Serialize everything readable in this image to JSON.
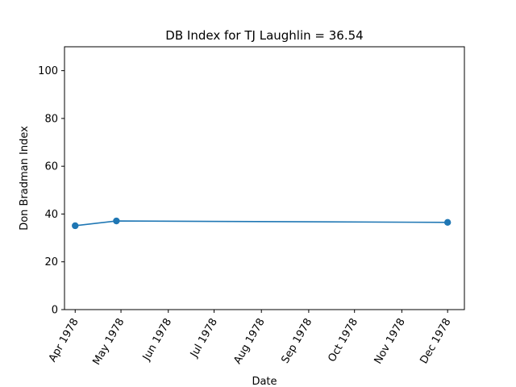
{
  "chart_data": {
    "type": "line",
    "title": "DB Index for TJ Laughlin = 36.54",
    "xlabel": "Date",
    "ylabel": "Don Bradman Index",
    "xlim": [
      "1978-03-25",
      "1978-12-12"
    ],
    "ylim": [
      0,
      110
    ],
    "yticks": [
      0,
      20,
      40,
      60,
      80,
      100
    ],
    "xticks": [
      {
        "date": "1978-04-01",
        "label": "Apr 1978"
      },
      {
        "date": "1978-05-01",
        "label": "May 1978"
      },
      {
        "date": "1978-06-01",
        "label": "Jun 1978"
      },
      {
        "date": "1978-07-01",
        "label": "Jul 1978"
      },
      {
        "date": "1978-08-01",
        "label": "Aug 1978"
      },
      {
        "date": "1978-09-01",
        "label": "Sep 1978"
      },
      {
        "date": "1978-10-01",
        "label": "Oct 1978"
      },
      {
        "date": "1978-11-01",
        "label": "Nov 1978"
      },
      {
        "date": "1978-12-01",
        "label": "Dec 1978"
      }
    ],
    "grid": false,
    "series": [
      {
        "color": "#1f77b4",
        "points": [
          {
            "x": "1978-04-01",
            "y": 35.1
          },
          {
            "x": "1978-04-28",
            "y": 37.1
          },
          {
            "x": "1978-12-01",
            "y": 36.5
          }
        ]
      }
    ]
  }
}
